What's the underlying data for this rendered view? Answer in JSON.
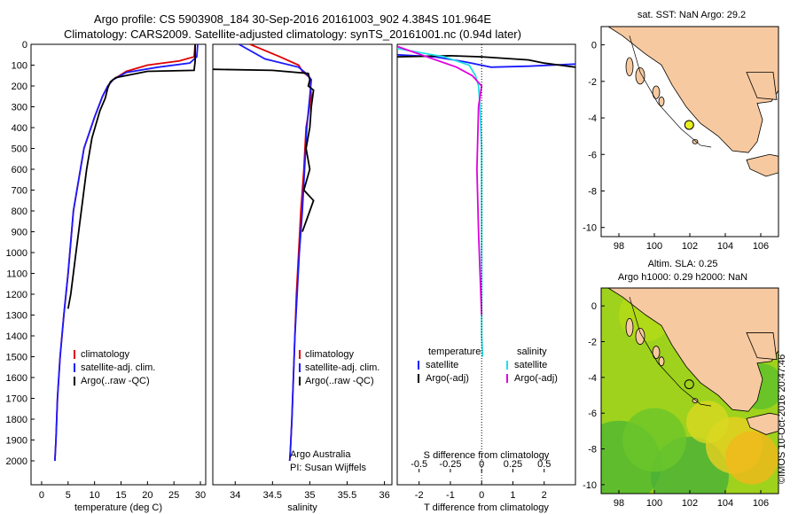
{
  "header": {
    "title_line1": "Argo profile: CS 5903908_184 30-Sep-2016 20161003_902 4.384S 101.964E",
    "title_line2": "Climatology: CARS2009. Satellite-adjusted climatology: synTS_20161001.nc (0.94d later)",
    "credit": "©IMOS 10-Oct-2016 20:47:46"
  },
  "colors": {
    "climatology": "#e00000",
    "satellite": "#1a1aff",
    "argo": "#000000",
    "satellite_s": "#22e0e6",
    "argo_adj_s": "#e000e0",
    "land": "#f7c9a0",
    "sea": "#ffffff",
    "float": "#e8f020"
  },
  "chart_data": [
    {
      "type": "line",
      "panel": "temperature",
      "xlabel": "temperature (deg C)",
      "ylabel": "",
      "xlim": [
        -2,
        31
      ],
      "ylim": [
        2100,
        0
      ],
      "xticks": [
        "0",
        "5",
        "10",
        "15",
        "20",
        "25",
        "30"
      ],
      "yticks": [
        "0",
        "100",
        "200",
        "300",
        "400",
        "500",
        "600",
        "700",
        "800",
        "900",
        "1000",
        "1100",
        "1200",
        "1300",
        "1400",
        "1500",
        "1600",
        "1700",
        "1800",
        "1900",
        "2000"
      ],
      "legend": [
        "climatology",
        "satellite-adj. clim.",
        "Argo(..raw -QC)"
      ],
      "series": [
        {
          "name": "climatology",
          "x": [
            29,
            28.8,
            26,
            20,
            16,
            13.5,
            12.5,
            11.5,
            10,
            8,
            6,
            5,
            4.2,
            3.5,
            3,
            2.7,
            2.5
          ],
          "y": [
            0,
            60,
            80,
            100,
            130,
            170,
            200,
            250,
            350,
            500,
            800,
            1100,
            1300,
            1500,
            1700,
            1900,
            2000
          ]
        },
        {
          "name": "satellite-adj. clim.",
          "x": [
            29.5,
            29.3,
            28,
            22,
            16,
            13.5,
            12.5,
            11.5,
            10,
            8,
            6,
            5,
            4.2,
            3.5,
            3,
            2.7,
            2.5
          ],
          "y": [
            0,
            60,
            90,
            110,
            135,
            170,
            200,
            250,
            350,
            500,
            800,
            1100,
            1300,
            1500,
            1700,
            1900,
            2000
          ]
        },
        {
          "name": "Argo(..raw -QC)",
          "x": [
            29,
            29,
            28.8,
            20,
            14,
            13,
            12.5,
            12,
            11,
            9.5,
            8.5,
            7.5,
            6.5,
            5.5,
            5
          ],
          "y": [
            0,
            80,
            125,
            130,
            160,
            180,
            210,
            260,
            320,
            450,
            600,
            800,
            1000,
            1200,
            1270
          ]
        }
      ]
    },
    {
      "type": "line",
      "panel": "salinity",
      "xlabel": "salinity",
      "xlim": [
        33.7,
        36.1
      ],
      "ylim": [
        2100,
        0
      ],
      "xticks": [
        "34",
        "34.5",
        "35",
        "35.5",
        "36"
      ],
      "legend": [
        "climatology",
        "satellite-adj. clim.",
        "Argo(..raw -QC)"
      ],
      "annotation": [
        "Argo Australia",
        "PI: Susan Wijffels"
      ],
      "series": [
        {
          "name": "climatology",
          "x": [
            34.2,
            34.6,
            34.85,
            34.9,
            35,
            35.02,
            34.95,
            34.92,
            34.88,
            34.85,
            34.82,
            34.8,
            34.78,
            34.76,
            34.74,
            34.73
          ],
          "y": [
            0,
            60,
            100,
            130,
            160,
            250,
            400,
            600,
            800,
            1000,
            1200,
            1400,
            1600,
            1800,
            1950,
            2000
          ]
        },
        {
          "name": "satellite-adj. clim.",
          "x": [
            34.05,
            34.4,
            34.85,
            34.95,
            35.02,
            35,
            34.96,
            34.93,
            34.9,
            34.86,
            34.83,
            34.8,
            34.78,
            34.76,
            34.74,
            34.73
          ],
          "y": [
            0,
            70,
            110,
            140,
            170,
            250,
            400,
            600,
            800,
            1000,
            1200,
            1400,
            1600,
            1800,
            1950,
            2000
          ]
        },
        {
          "name": "Argo(..raw -QC)",
          "x": [
            33.7,
            34.5,
            34.98,
            35,
            34.98,
            35.05,
            35.02,
            35,
            34.95,
            35,
            34.92,
            35.05,
            34.95,
            34.9
          ],
          "y": [
            120,
            125,
            140,
            170,
            200,
            220,
            300,
            400,
            500,
            600,
            700,
            750,
            850,
            900
          ]
        }
      ]
    },
    {
      "type": "line",
      "panel": "difference",
      "xlabel": "T difference from climatology",
      "xlabel_top": "S difference from climatology",
      "xlim": [
        -2.7,
        3
      ],
      "ylim": [
        2100,
        0
      ],
      "xticks": [
        "-2",
        "-1",
        "0",
        "1",
        "2"
      ],
      "xticks_top": [
        "-0.5",
        "-0.25",
        "0",
        "0.25",
        "0.5"
      ],
      "legend_titles": [
        "temperature",
        "salinity"
      ],
      "legend": [
        "satellite",
        "Argo(-adj)",
        "satellite",
        "Argo(-adj)"
      ],
      "series": [
        {
          "name": "satellite",
          "group": "temperature",
          "x": [
            -2.7,
            -1.5,
            -0.5,
            0.3,
            1.5,
            3
          ],
          "y": [
            50,
            60,
            85,
            110,
            105,
            95
          ]
        },
        {
          "name": "Argo(-adj)",
          "group": "temperature",
          "x": [
            -2.7,
            -1,
            0,
            1.5,
            2,
            3
          ],
          "y": [
            60,
            55,
            60,
            75,
            90,
            110
          ]
        },
        {
          "name": "satellite",
          "group": "salinity",
          "x": [
            -2.7,
            -1.2,
            -0.4,
            -0.2,
            -0.1,
            -0.05,
            0,
            0,
            0,
            0,
            0.03
          ],
          "y": [
            20,
            60,
            100,
            150,
            200,
            300,
            500,
            800,
            1100,
            1400,
            1500
          ]
        },
        {
          "name": "Argo(-adj)",
          "group": "salinity",
          "x": [
            -2.7,
            -0.8,
            -0.3,
            0,
            -0.1,
            -0.15,
            -0.1,
            -0.05,
            0
          ],
          "y": [
            10,
            110,
            150,
            200,
            300,
            600,
            900,
            1100,
            1300
          ]
        }
      ]
    },
    {
      "type": "map",
      "panel": "sst-map",
      "title": "sat. SST: NaN Argo: 29.2",
      "xticks": [
        "98",
        "100",
        "102",
        "104",
        "106"
      ],
      "yticks": [
        "0",
        "-2",
        "-4",
        "-6",
        "-8",
        "-10"
      ]
    },
    {
      "type": "heatmap",
      "panel": "sla-map",
      "title_line1": "Altim. SLA: 0.25",
      "title_line2": "Argo h1000: 0.29 h2000: NaN",
      "xticks": [
        "98",
        "100",
        "102",
        "104",
        "106"
      ],
      "yticks": [
        "0",
        "-2",
        "-4",
        "-6",
        "-8",
        "-10"
      ]
    }
  ]
}
